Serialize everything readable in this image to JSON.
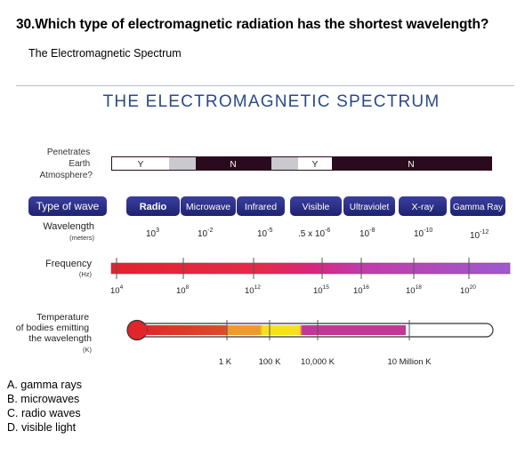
{
  "question": {
    "text": "30.Which type of electromagnetic radiation has the shortest wavelength?",
    "subtitle": "The Electromagnetic Spectrum"
  },
  "figure": {
    "title": "THE ELECTROMAGNETIC SPECTRUM",
    "penetrates_label": [
      "Penetrates",
      "Earth",
      "Atmosphere?"
    ],
    "penetration_flags": [
      "Y",
      "N",
      "Y",
      "N"
    ],
    "type_of_wave_label": "Type of wave",
    "wave_types": [
      "Radio",
      "Microwave",
      "Infrared",
      "Visible",
      "Ultraviolet",
      "X-ray",
      "Gamma Ray"
    ],
    "wavelength_label": "Wavelength",
    "wavelength_unit": "(meters)",
    "wavelengths": [
      {
        "base": "10",
        "exp": "3"
      },
      {
        "base": "10",
        "exp": "-2"
      },
      {
        "base": "10",
        "exp": "-5"
      },
      {
        "base": ".5 x 10",
        "exp": "-6"
      },
      {
        "base": "10",
        "exp": "-8"
      },
      {
        "base": "10",
        "exp": "-10"
      },
      {
        "base": "10",
        "exp": "-12"
      }
    ],
    "frequency_label": "Frequency",
    "frequency_unit": "(Hz)",
    "frequencies": [
      {
        "base": "10",
        "exp": "4"
      },
      {
        "base": "10",
        "exp": "8"
      },
      {
        "base": "10",
        "exp": "12"
      },
      {
        "base": "10",
        "exp": "15"
      },
      {
        "base": "10",
        "exp": "16"
      },
      {
        "base": "10",
        "exp": "18"
      },
      {
        "base": "10",
        "exp": "20"
      }
    ],
    "temperature_label": [
      "Temperature",
      "of bodies emitting",
      "the wavelength"
    ],
    "temperature_unit": "(K)",
    "temperatures": [
      "1 K",
      "100 K",
      "10,000 K",
      "10 Million K"
    ],
    "colors": {
      "wave_pill": "#2b2f86",
      "dark_bar": "#2a0b1e",
      "window": "#c9c9ce",
      "thermometer_red": "#e0262b"
    }
  },
  "choices": [
    "A. gamma rays",
    "B. microwaves",
    "C. radio waves",
    "D. visible light"
  ]
}
